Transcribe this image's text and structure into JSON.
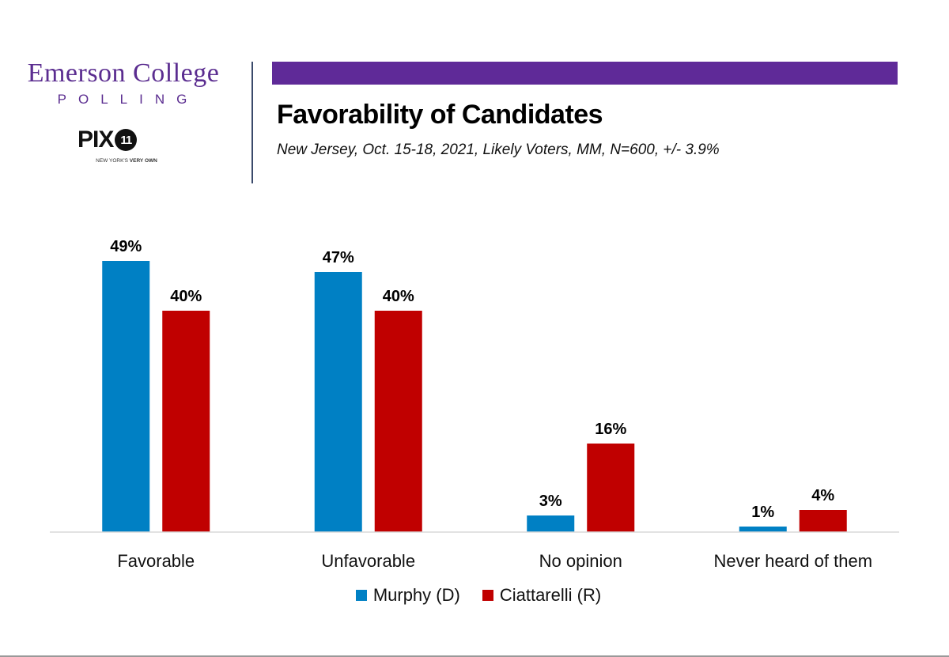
{
  "branding": {
    "emerson_name": "Emerson College",
    "emerson_sub": "POLLING",
    "pix_wordmark": "PIX",
    "pix_number": "11",
    "pix_tagline_regular": "NEW YORK'S ",
    "pix_tagline_bold": "VERY OWN"
  },
  "colors": {
    "accent_purple": "#5f2a98",
    "murphy_blue": "#0080c4",
    "ciattarelli_red": "#c00000"
  },
  "chart_data": {
    "type": "bar",
    "title": "Favorability of Candidates",
    "subtitle": "New Jersey, Oct. 15-18, 2021, Likely Voters, MM, N=600, +/- 3.9%",
    "xlabel": "",
    "ylabel": "",
    "ylim": [
      0,
      55
    ],
    "grid": false,
    "legend_position": "bottom-center",
    "categories": [
      "Favorable",
      "Unfavorable",
      "No opinion",
      "Never heard of them"
    ],
    "series": [
      {
        "name": "Murphy (D)",
        "color": "#0080c4",
        "values": [
          49,
          47,
          3,
          1
        ],
        "labels": [
          "49%",
          "47%",
          "3%",
          "1%"
        ]
      },
      {
        "name": "Ciattarelli (R)",
        "color": "#c00000",
        "values": [
          40,
          40,
          16,
          4
        ],
        "labels": [
          "40%",
          "40%",
          "16%",
          "4%"
        ]
      }
    ]
  }
}
